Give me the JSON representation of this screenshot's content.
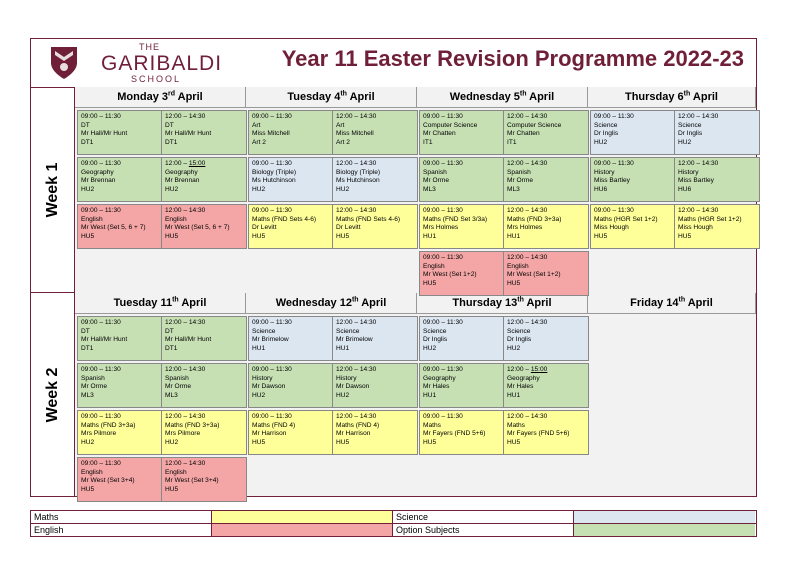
{
  "header": {
    "logo_the": "THE",
    "logo_name": "GARIBALDI",
    "logo_school": "SCHOOL",
    "title": "Year 11 Easter Revision Programme 2022-23"
  },
  "weeks": [
    {
      "label": "Week 1"
    },
    {
      "label": "Week 2"
    }
  ],
  "days": [
    {
      "name": "Monday 3",
      "sup": "rd",
      "suffix": " April"
    },
    {
      "name": "Tuesday 4",
      "sup": "th",
      "suffix": " April"
    },
    {
      "name": "Wednesday 5",
      "sup": "th",
      "suffix": " April"
    },
    {
      "name": "Thursday 6",
      "sup": "th",
      "suffix": " April"
    },
    {
      "name": "Tuesday 11",
      "sup": "th",
      "suffix": " April"
    },
    {
      "name": "Wednesday 12",
      "sup": "th",
      "suffix": " April"
    },
    {
      "name": "Thursday 13",
      "sup": "th",
      "suffix": " April"
    },
    {
      "name": "Friday 14",
      "sup": "th",
      "suffix": " April"
    }
  ],
  "sessions": [
    {
      "time": "09:00 – 11:30",
      "subject": "DT",
      "teacher": "Mr Hall/Mr Hunt",
      "room": "DT1",
      "color": "green"
    },
    {
      "time": "12:00 – 14:30",
      "subject": "DT",
      "teacher": "Mr Hall/Mr Hunt",
      "room": "DT1",
      "color": "green"
    },
    {
      "time": "09:00 – 11:30",
      "subject": "Art",
      "teacher": "Miss Mitchell",
      "room": "Art 2",
      "color": "green"
    },
    {
      "time": "12:00 – 14:30",
      "subject": "Art",
      "teacher": "Miss Mitchell",
      "room": "Art 2",
      "color": "green"
    },
    {
      "time": "09:00 – 11:30",
      "subject": "Computer Science",
      "teacher": "Mr Chatten",
      "room": "IT1",
      "color": "green"
    },
    {
      "time": "12:00 – 14:30",
      "subject": "Computer Science",
      "teacher": "Mr Chatten",
      "room": "IT1",
      "color": "green"
    },
    {
      "time": "09:00 – 11:30",
      "subject": "Science",
      "teacher": "Dr Inglis",
      "room": "HU2",
      "color": "blue"
    },
    {
      "time": "12:00 – 14:30",
      "subject": "Science",
      "teacher": "Dr Inglis",
      "room": "HU2",
      "color": "blue"
    },
    {
      "time": "09:00 – 11:30",
      "subject": "Geography",
      "teacher": "Mr Brennan",
      "room": "HU2",
      "color": "green"
    },
    {
      "time": "12:00 – ",
      "time_u": "15:00",
      "subject": "Geography",
      "teacher": "Mr Brennan",
      "room": "HU2",
      "color": "green"
    },
    {
      "time": "09:00 – 11:30",
      "subject": "Biology (Triple)",
      "teacher": "Ms Hutchinson",
      "room": "HU2",
      "color": "blue"
    },
    {
      "time": "12:00 – 14:30",
      "subject": "Biology (Triple)",
      "teacher": "Ms Hutchinson",
      "room": "HU2",
      "color": "blue"
    },
    {
      "time": "09:00 – 11:30",
      "subject": "Spanish",
      "teacher": "Mr Orme",
      "room": "ML3",
      "color": "green"
    },
    {
      "time": "12:00 – 14:30",
      "subject": "Spanish",
      "teacher": "Mr Orme",
      "room": "ML3",
      "color": "green"
    },
    {
      "time": "09:00 – 11:30",
      "subject": "History",
      "teacher": "Miss Bartley",
      "room": "HU6",
      "color": "green"
    },
    {
      "time": "12:00 – 14:30",
      "subject": "History",
      "teacher": "Miss Bartley",
      "room": "HU6",
      "color": "green"
    },
    {
      "time": "09:00 – 11:30",
      "subject": "English",
      "teacher": "Mr West (Set 5, 6 + 7)",
      "room": "HU5",
      "color": "red"
    },
    {
      "time": "12:00 – 14:30",
      "subject": "English",
      "teacher": "Mr West (Set 5, 6 + 7)",
      "room": "HU5",
      "color": "red"
    },
    {
      "time": "09:00 – 11:30",
      "subject": "Maths (FND Sets 4-6)",
      "teacher": "Dr Levitt",
      "room": "HU5",
      "color": "yellow"
    },
    {
      "time": "12:00 – 14:30",
      "subject": "Maths (FND Sets 4-6)",
      "teacher": "Dr Levitt",
      "room": "HU5",
      "color": "yellow"
    },
    {
      "time": "09:00 – 11:30",
      "subject": "Maths (FND Set 3/3a)",
      "teacher": "Mrs Holmes",
      "room": "HU1",
      "color": "yellow"
    },
    {
      "time": "12:00 – 14:30",
      "subject": "Maths (FND 3+3a)",
      "teacher": "Mrs Holmes",
      "room": "HU1",
      "color": "yellow"
    },
    {
      "time": "09:00 – 11:30",
      "subject": "Maths (HGR Set 1+2)",
      "teacher": "Miss Hough",
      "room": "HU5",
      "color": "yellow"
    },
    {
      "time": "12:00 – 14:30",
      "subject": "Maths (HGR Set 1+2)",
      "teacher": "Miss Hough",
      "room": "HU5",
      "color": "yellow"
    },
    {
      "time": "09:00 – 11:30",
      "subject": "English",
      "teacher": "Mr West (Set 1+2)",
      "room": "HU5",
      "color": "red"
    },
    {
      "time": "12:00 – 14:30",
      "subject": "English",
      "teacher": "Mr West (Set 1+2)",
      "room": "HU5",
      "color": "red"
    },
    {
      "time": "09:00 – 11:30",
      "subject": "DT",
      "teacher": "Mr Hall/Mr Hunt",
      "room": "DT1",
      "color": "green"
    },
    {
      "time": "12:00 – 14:30",
      "subject": "DT",
      "teacher": "Mr Hall/Mr Hunt",
      "room": "DT1",
      "color": "green"
    },
    {
      "time": "09:00 – 11:30",
      "subject": "Science",
      "teacher": "Mr Brimelow",
      "room": "HU1",
      "color": "blue"
    },
    {
      "time": "12:00 – 14:30",
      "subject": "Science",
      "teacher": "Mr Brimelow",
      "room": "HU1",
      "color": "blue"
    },
    {
      "time": "09:00 – 11:30",
      "subject": "Science",
      "teacher": "Dr Inglis",
      "room": "HU2",
      "color": "blue"
    },
    {
      "time": "12:00 – 14:30",
      "subject": "Science",
      "teacher": "Dr Inglis",
      "room": "HU2",
      "color": "blue"
    },
    {
      "time": "09:00 – 11:30",
      "subject": "Spanish",
      "teacher": "Mr Orme",
      "room": "ML3",
      "color": "green"
    },
    {
      "time": "12:00 – 14:30",
      "subject": "Spanish",
      "teacher": "Mr Orme",
      "room": "ML3",
      "color": "green"
    },
    {
      "time": "09:00 – 11:30",
      "subject": "History",
      "teacher": "Mr Dawson",
      "room": "HU2",
      "color": "green"
    },
    {
      "time": "12:00 – 14:30",
      "subject": "History",
      "teacher": "Mr Dawson",
      "room": "HU2",
      "color": "green"
    },
    {
      "time": "09:00 – 11:30",
      "subject": "Geography",
      "teacher": "Mr Hales",
      "room": "HU1",
      "color": "green"
    },
    {
      "time": "12:00 – ",
      "time_u": "15:00",
      "subject": "Geography",
      "teacher": "Mr Hales",
      "room": "HU1",
      "color": "green"
    },
    {
      "time": "09:00 – 11:30",
      "subject": "Maths (FND 3+3a)",
      "teacher": "Mrs Pilmore",
      "room": "HU2",
      "color": "yellow"
    },
    {
      "time": "12:00 – 14:30",
      "subject": "Maths (FND 3+3a)",
      "teacher": "Mrs Pilmore",
      "room": "HU2",
      "color": "yellow"
    },
    {
      "time": "09:00 – 11:30",
      "subject": "Maths (FND 4)",
      "teacher": "Mr Harrison",
      "room": "HU5",
      "color": "yellow"
    },
    {
      "time": "12:00 – 14:30",
      "subject": "Maths (FND 4)",
      "teacher": "Mr Harrison",
      "room": "HU5",
      "color": "yellow"
    },
    {
      "time": "09:00 – 11:30",
      "subject": "Maths",
      "teacher": "Mr Fayers (FND 5+6)",
      "room": "HU5",
      "color": "yellow"
    },
    {
      "time": "12:00 – 14:30",
      "subject": "Maths",
      "teacher": "Mr Fayers (FND 5+6)",
      "room": "HU5",
      "color": "yellow"
    },
    {
      "time": "09:00 – 11:30",
      "subject": "English",
      "teacher": "Mr West (Set 3+4)",
      "room": "HU5",
      "color": "red"
    },
    {
      "time": "12:00 – 14:30",
      "subject": "English",
      "teacher": "Mr West (Set 3+4)",
      "room": "HU5",
      "color": "red"
    }
  ],
  "legend": [
    {
      "label": "Maths",
      "swatch": "#ffff99"
    },
    {
      "label": "Science",
      "swatch": "#dce6f1"
    },
    {
      "label": "English",
      "swatch": "#f4a6a6"
    },
    {
      "label": "Option Subjects",
      "swatch": "#c6e0b4"
    }
  ],
  "colors": {
    "brand": "#6f1f38",
    "green": "#c6e0b4",
    "blue": "#dce6f1",
    "yellow": "#ffff99",
    "red": "#f4a6a6"
  }
}
